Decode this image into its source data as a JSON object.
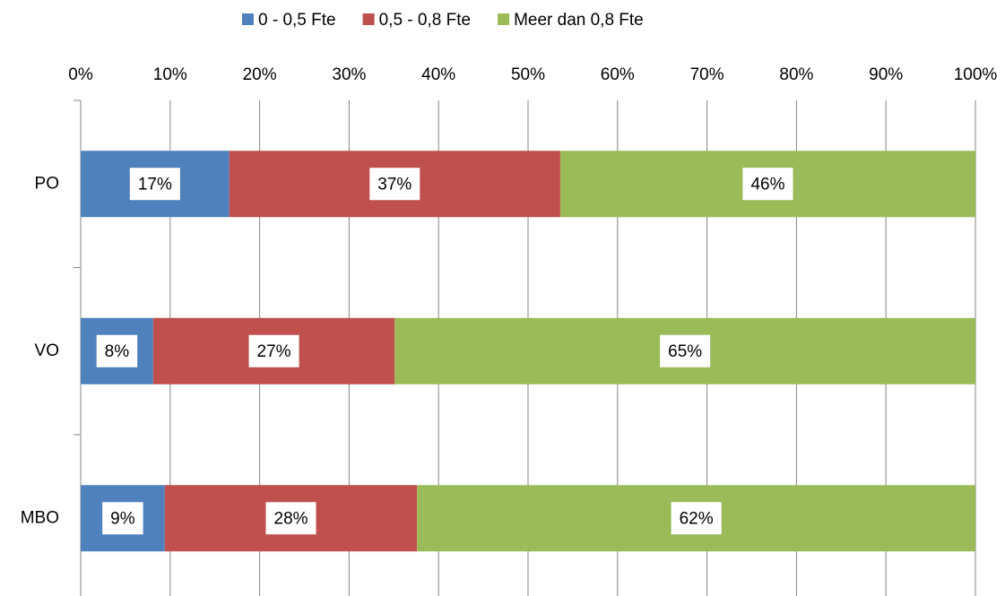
{
  "chart_data": {
    "type": "stacked-barh",
    "categories": [
      "PO",
      "VO",
      "MBO"
    ],
    "series": [
      {
        "name": "0 - 0,5 Fte",
        "color": "#4f81bd",
        "values": [
          16.6,
          8.1,
          9.4
        ],
        "value_labels": [
          "17%",
          "8%",
          "9%"
        ]
      },
      {
        "name": "0,5 - 0,8 Fte",
        "color": "#c0504d",
        "values": [
          37.0,
          27.0,
          28.2
        ],
        "value_labels": [
          "37%",
          "27%",
          "28%"
        ]
      },
      {
        "name": "Meer dan 0,8 Fte",
        "color": "#9bbb59",
        "values": [
          46.4,
          64.9,
          62.4
        ],
        "value_labels": [
          "46%",
          "65%",
          "62%"
        ]
      }
    ],
    "xlim": [
      0,
      100
    ],
    "xticks": [
      {
        "value": 0,
        "label": "0%"
      },
      {
        "value": 10,
        "label": "10%"
      },
      {
        "value": 20,
        "label": "20%"
      },
      {
        "value": 30,
        "label": "30%"
      },
      {
        "value": 40,
        "label": "40%"
      },
      {
        "value": 50,
        "label": "50%"
      },
      {
        "value": 60,
        "label": "60%"
      },
      {
        "value": 70,
        "label": "70%"
      },
      {
        "value": 80,
        "label": "80%"
      },
      {
        "value": 90,
        "label": "90%"
      },
      {
        "value": 100,
        "label": "100%"
      }
    ],
    "grid": true,
    "legend": "top"
  }
}
